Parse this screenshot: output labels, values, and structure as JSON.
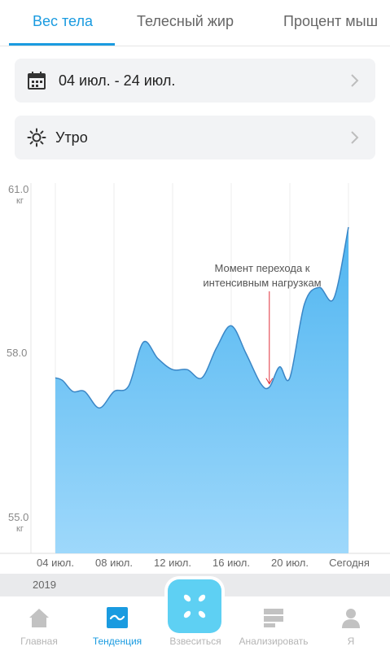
{
  "tabs": [
    {
      "label": "Вес тела",
      "active": true
    },
    {
      "label": "Телесный жир",
      "active": false
    },
    {
      "label": "Процент мыш",
      "active": false
    }
  ],
  "date_range": {
    "icon": "calendar-icon",
    "label": "04 июл. - 24 июл."
  },
  "time_of_day": {
    "icon": "sun-icon",
    "label": "Утро"
  },
  "chart_data": {
    "type": "area",
    "y_ticks": [
      {
        "value": 61.0,
        "label": "61.0",
        "unit": "кг"
      },
      {
        "value": 58.0,
        "label": "58.0",
        "unit": ""
      },
      {
        "value": 55.0,
        "label": "55.0",
        "unit": "кг"
      }
    ],
    "ylim": [
      55.0,
      61.0
    ],
    "x_tick_labels": [
      "04 июл.",
      "08 июл.",
      "12 июл.",
      "16 июл.",
      "20 июл.",
      "Сегодня"
    ],
    "series": [
      {
        "color": "#5bbcf2",
        "x_days": [
          4,
          4.5,
          5.2,
          6,
          7,
          8,
          9,
          10,
          11,
          12,
          13,
          14,
          15,
          16,
          17,
          18,
          18.6,
          19.3,
          20,
          21,
          22,
          23,
          24
        ],
        "values": [
          57.55,
          57.5,
          57.3,
          57.3,
          57.0,
          57.3,
          57.4,
          58.2,
          57.9,
          57.7,
          57.7,
          57.55,
          58.1,
          58.5,
          58.0,
          57.45,
          57.38,
          57.75,
          57.55,
          58.9,
          59.2,
          59.0,
          60.3
        ]
      }
    ],
    "annotation": {
      "text_line1": "Момент перехода к",
      "text_line2": "интенсивным нагрузкам",
      "x_day": 18.6,
      "color": "#e0303a"
    },
    "grid": true
  },
  "year_label": "2019",
  "nav": [
    {
      "label": "Главная",
      "icon": "home-icon",
      "active": false
    },
    {
      "label": "Тенденция",
      "icon": "trend-icon",
      "active": true
    },
    {
      "label": "Взвеситься",
      "icon": "scale-icon",
      "active": false
    },
    {
      "label": "Анализировать",
      "icon": "analyze-icon",
      "active": false
    },
    {
      "label": "Я",
      "icon": "profile-icon",
      "active": false
    }
  ]
}
